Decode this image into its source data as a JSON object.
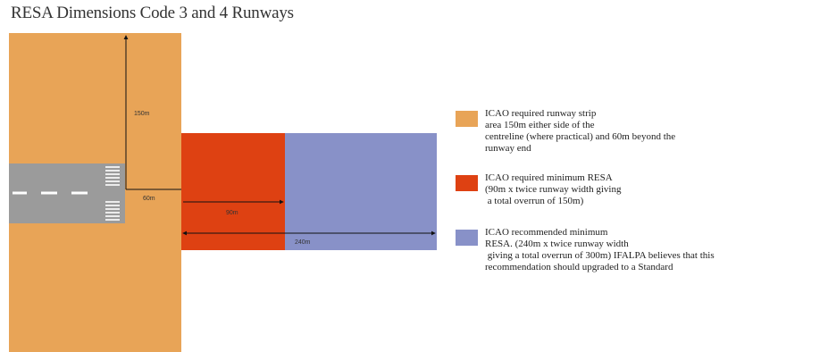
{
  "title": "RESA Dimensions Code 3 and 4 Runways",
  "colors": {
    "strip": "#E8A457",
    "runway": "#9B9B9B",
    "min_resa": "#DE4112",
    "rec_resa": "#8891C8"
  },
  "dimensions": {
    "strip_half_width": "150m",
    "strip_end": "60m",
    "min_resa_length": "90m",
    "rec_resa_length": "240m"
  },
  "legend": [
    {
      "text": "ICAO required runway strip\narea 150m either side of the\ncentreline (where practical) and 60m beyond the\nrunway end"
    },
    {
      "text": "ICAO required minimum RESA\n(90m x twice runway width giving\n a total overrun of 150m)"
    },
    {
      "text": "ICAO recommended minimum\nRESA. (240m x twice runway width\n giving a total overrun of 300m) IFALPA believes that this\nrecommendation should upgraded to a Standard"
    }
  ]
}
